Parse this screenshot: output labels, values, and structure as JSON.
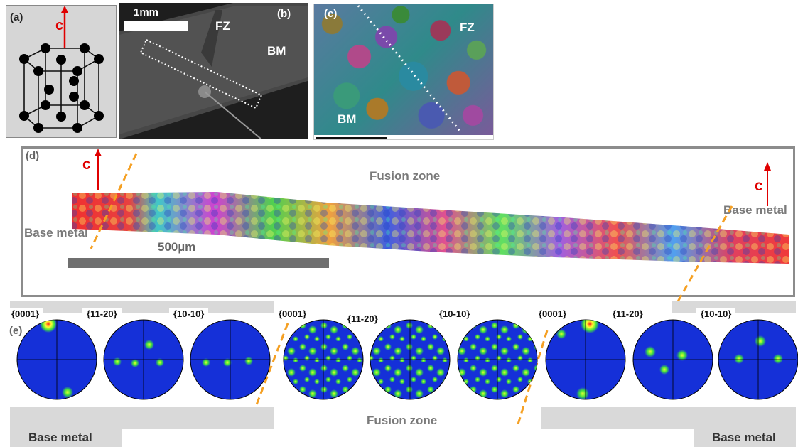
{
  "panel_a": {
    "label": "(a)",
    "axis": "c"
  },
  "panel_b": {
    "label": "(b)",
    "scale": "1mm",
    "fz": "FZ",
    "bm": "BM"
  },
  "panel_c": {
    "label": "(c)",
    "fz": "FZ",
    "bm": "BM"
  },
  "panel_d": {
    "label": "(d)",
    "fusion_zone": "Fusion zone",
    "base_metal_left": "Base metal",
    "base_metal_right": "Base metal",
    "scale": "500µm",
    "axis_left": "c",
    "axis_right": "c"
  },
  "panel_e": {
    "label": "(e)",
    "groups": [
      {
        "poles": [
          "{0001}",
          "{11-20}",
          "{10-10}"
        ]
      },
      {
        "poles": [
          "{0001}",
          "{11-20}",
          "{10-10}"
        ]
      },
      {
        "poles": [
          "{0001}",
          "{11-20}",
          "{10-10}"
        ]
      }
    ],
    "base_metal_left": "Base metal",
    "fusion_zone": "Fusion zone",
    "base_metal_right": "Base metal"
  },
  "colors": {
    "arrow": "#e00000",
    "dash": "#f5a023",
    "pole_bg": "#1530d8",
    "hot": "#40e040"
  }
}
